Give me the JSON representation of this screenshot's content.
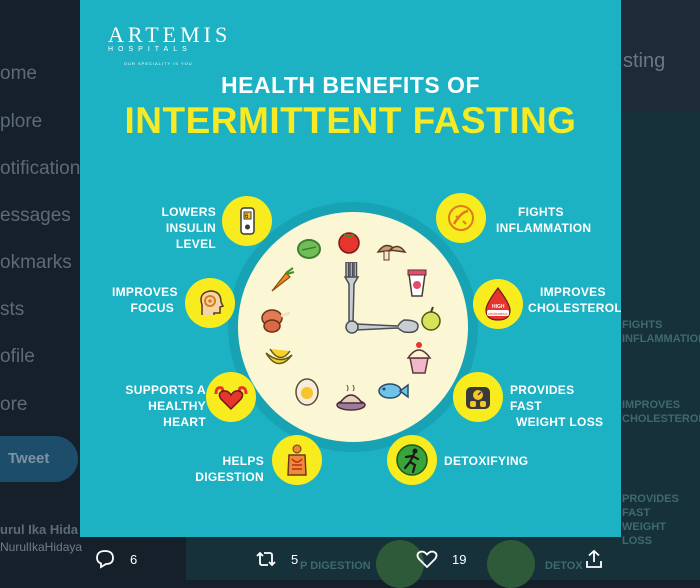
{
  "background": {
    "nav_items": [
      "ome",
      "plore",
      "otifications",
      "essages",
      "okmarks",
      "sts",
      "ofile",
      "ore"
    ],
    "tweet_button": "Tweet",
    "user": {
      "name": "urul Ika Hida",
      "handle": "NurulIkaHidaya"
    },
    "right_title": "sting",
    "right_snippets": [
      "FIGHTS INFLAMMATION",
      "IMPROVES CHOLESTEROL",
      "PROVIDES FAST WEIGHT LOSS"
    ],
    "bottom_snippets": [
      "P DIGESTION",
      "DETOX"
    ]
  },
  "poster": {
    "logo": {
      "brand": "ARTEMIS",
      "sub": "HOSPITALS",
      "tagline": "OUR SPECIALITY IS YOU"
    },
    "title_line1": "HEALTH BENEFITS OF",
    "title_line2": "INTERMITTENT FASTING",
    "benefits_left": [
      {
        "line1": "LOWERS",
        "line2": "INSULIN LEVEL",
        "icon": "glucose-meter-icon"
      },
      {
        "line1": "IMPROVES",
        "line2": "FOCUS",
        "icon": "brain-focus-icon"
      },
      {
        "line1": "SUPPORTS A",
        "line2": "HEALTHY HEART",
        "icon": "heart-muscle-icon"
      },
      {
        "line1": "HELPS DIGESTION",
        "line2": "",
        "icon": "digestive-system-icon"
      }
    ],
    "benefits_right": [
      {
        "line1": "FIGHTS",
        "line2": "INFLAMMATION",
        "icon": "inflammation-icon"
      },
      {
        "line1": "IMPROVES",
        "line2": "CHOLESTEROL",
        "icon": "cholesterol-drop-icon"
      },
      {
        "line1": "PROVIDES FAST",
        "line2": "WEIGHT LOSS",
        "icon": "weight-scale-icon"
      },
      {
        "line1": "DETOXIFYING",
        "line2": "",
        "icon": "runner-icon"
      }
    ],
    "cholesterol_badge": "HIGH",
    "cholesterol_word": "cholesterol",
    "colors": {
      "background": "#1cb2c4",
      "accent_yellow": "#f5ea24",
      "plate": "#fbf7d5"
    }
  },
  "actions": {
    "reply_count": "6",
    "retweet_count": "5",
    "like_count": "19"
  }
}
